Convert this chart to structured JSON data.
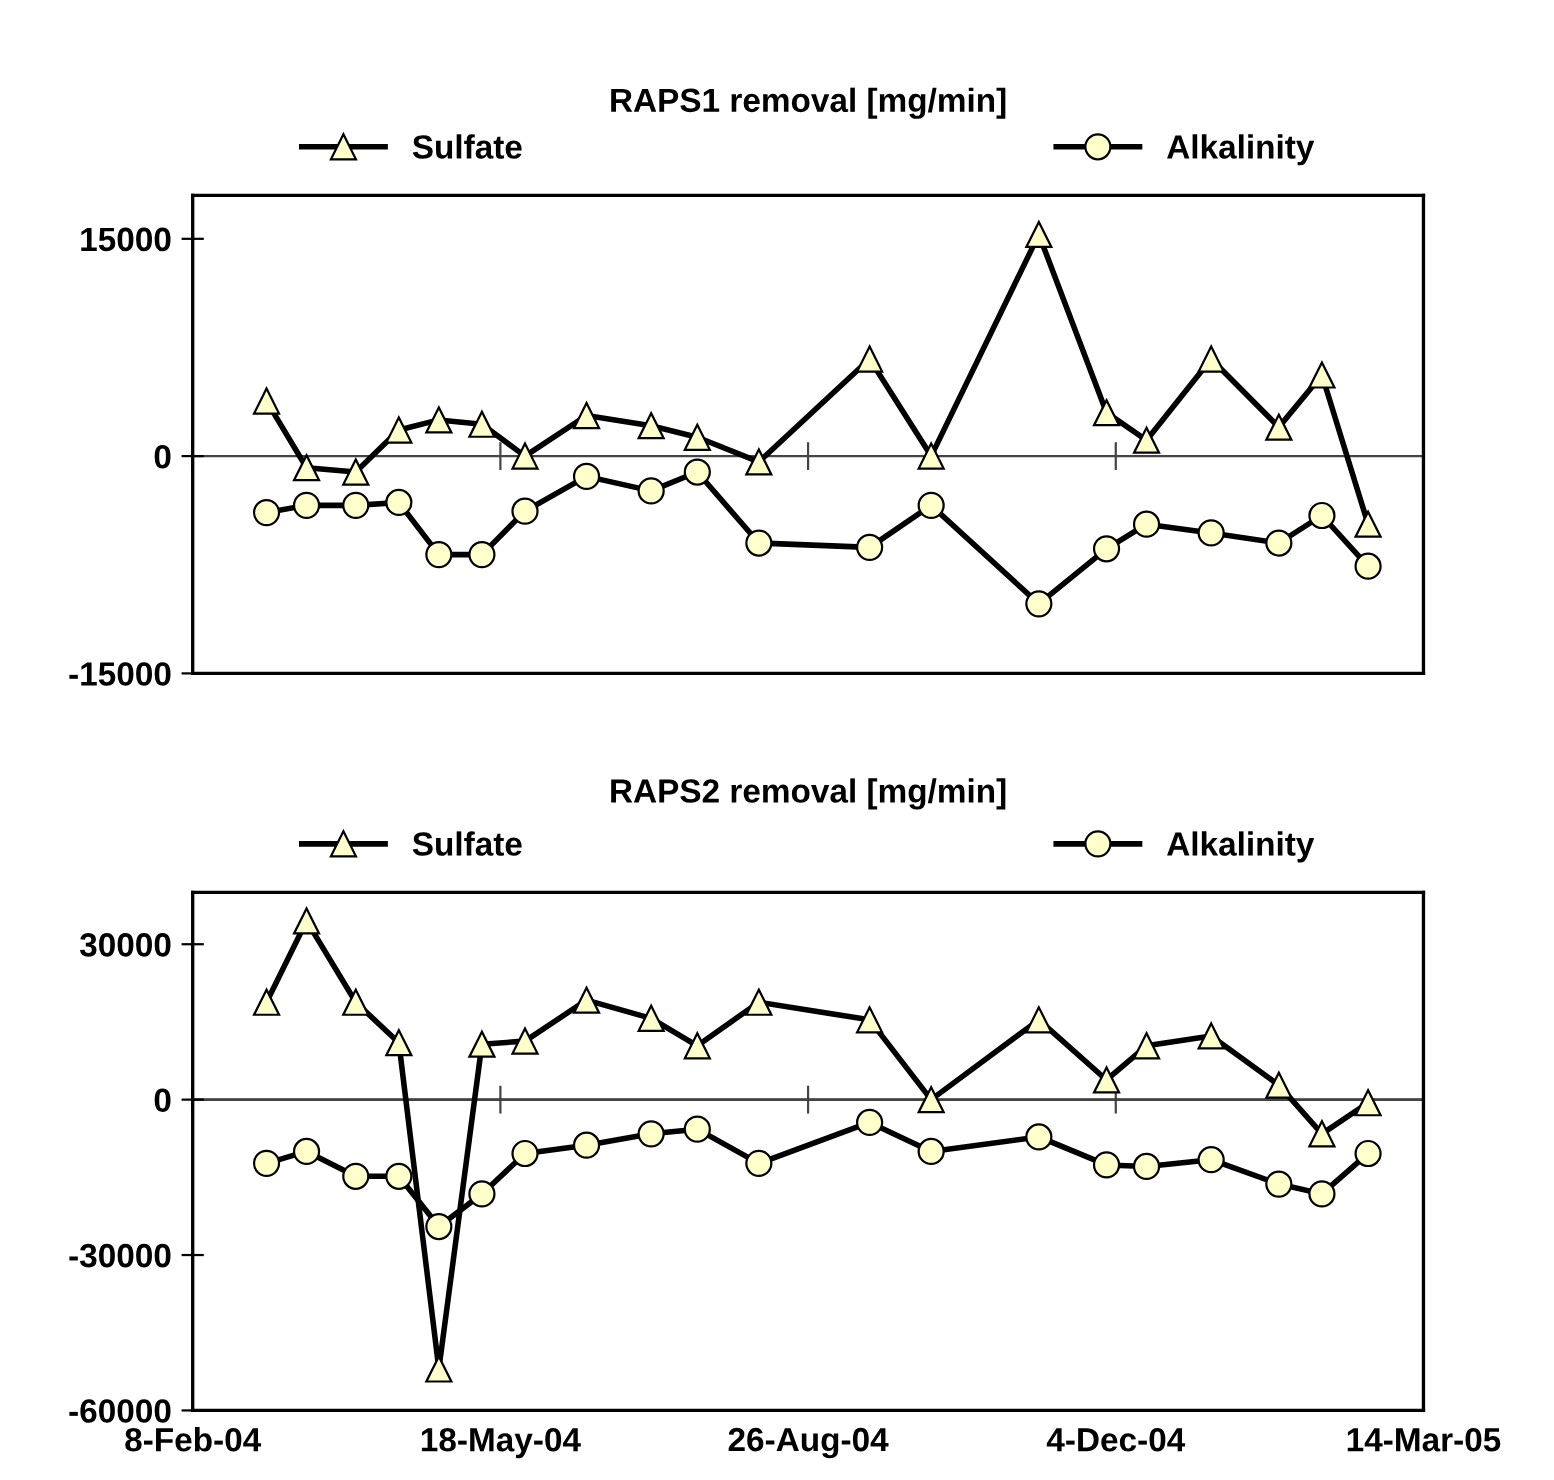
{
  "chart_data": [
    {
      "type": "line",
      "title": "RAPS1 removal [mg/min]",
      "legend": "top",
      "line_style": "solid",
      "tick_labels": "y",
      "ref_lines": [
        {
          "axis": "y",
          "value": 0,
          "color": "#444444"
        }
      ],
      "x": [
        "2004-03-03",
        "2004-03-16",
        "2004-04-01",
        "2004-04-15",
        "2004-04-28",
        "2004-05-12",
        "2004-05-26",
        "2004-06-15",
        "2004-07-06",
        "2004-07-21",
        "2004-08-10",
        "2004-09-15",
        "2004-10-05",
        "2004-11-09",
        "2004-12-01",
        "2004-12-14",
        "2005-01-04",
        "2005-01-26",
        "2005-02-09",
        "2005-02-24"
      ],
      "series": [
        {
          "name": "Sulfate",
          "color": "#ffffcc",
          "marker": "triangle",
          "values": [
            3800,
            -800,
            -1100,
            1800,
            2500,
            2200,
            0,
            2800,
            2100,
            1300,
            -400,
            6700,
            0,
            15300,
            3000,
            1100,
            6700,
            2000,
            5600,
            -4700
          ]
        },
        {
          "name": "Alkalinity",
          "color": "#ffffcc",
          "marker": "circle",
          "values": [
            -3900,
            -3400,
            -3400,
            -3200,
            -6800,
            -6800,
            -3800,
            -1400,
            -2400,
            -1100,
            -6000,
            -6300,
            -3400,
            -10200,
            -6400,
            -4700,
            -5300,
            -6000,
            -4100,
            -7600
          ]
        }
      ],
      "xlim": [
        "2004-02-08",
        "2005-03-14"
      ],
      "xticks": [
        {
          "value": "2004-02-08",
          "label": null
        },
        {
          "value": "2004-05-18",
          "label": null
        },
        {
          "value": "2004-08-26",
          "label": null
        },
        {
          "value": "2004-12-04",
          "label": null
        },
        {
          "value": "2005-03-14",
          "label": null
        }
      ],
      "ylim": [
        -15000,
        18000
      ],
      "yticks": [
        -15000,
        0,
        15000
      ],
      "grid": false
    },
    {
      "type": "line",
      "title": "RAPS2 removal [mg/min]",
      "legend": "top",
      "line_style": "solid",
      "ref_lines": [
        {
          "axis": "y",
          "value": 0,
          "color": "#444444"
        }
      ],
      "x": [
        "2004-03-03",
        "2004-03-16",
        "2004-04-01",
        "2004-04-15",
        "2004-04-28",
        "2004-05-12",
        "2004-05-26",
        "2004-06-15",
        "2004-07-06",
        "2004-07-21",
        "2004-08-10",
        "2004-09-15",
        "2004-10-05",
        "2004-11-09",
        "2004-12-01",
        "2004-12-14",
        "2005-01-04",
        "2005-01-26",
        "2005-02-09",
        "2005-02-24"
      ],
      "series": [
        {
          "name": "Sulfate",
          "color": "#ffffcc",
          "marker": "triangle",
          "values": [
            18800,
            34500,
            18800,
            11000,
            -52000,
            10700,
            11300,
            19200,
            15700,
            10400,
            18800,
            15400,
            0,
            15400,
            3800,
            10400,
            12300,
            2800,
            -6600,
            -600
          ]
        },
        {
          "name": "Alkalinity",
          "color": "#ffffcc",
          "marker": "circle",
          "values": [
            -12300,
            -10000,
            -14800,
            -14800,
            -24500,
            -18200,
            -10400,
            -8800,
            -6600,
            -5700,
            -12300,
            -4400,
            -10000,
            -7200,
            -12600,
            -12900,
            -11600,
            -16300,
            -18200,
            -10400
          ]
        }
      ],
      "xlim": [
        "2004-02-08",
        "2005-03-14"
      ],
      "xticks": [
        {
          "value": "2004-02-08",
          "label": "8-Feb-04"
        },
        {
          "value": "2004-05-18",
          "label": "18-May-04"
        },
        {
          "value": "2004-08-26",
          "label": "26-Aug-04"
        },
        {
          "value": "2004-12-04",
          "label": "4-Dec-04"
        },
        {
          "value": "2005-03-14",
          "label": "14-Mar-05"
        }
      ],
      "ylim": [
        -60000,
        40000
      ],
      "yticks": [
        -60000,
        -30000,
        0,
        30000
      ],
      "grid": false
    }
  ]
}
